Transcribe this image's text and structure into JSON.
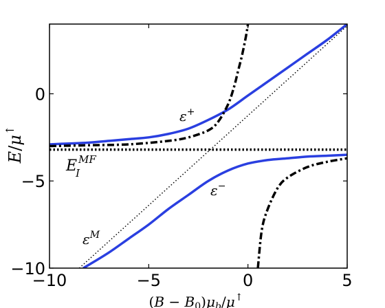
{
  "chart_data": {
    "type": "line",
    "title": "",
    "xlabel": "(B − B₀)μ_b/μ↑",
    "ylabel": "E/μ↑",
    "xlim": [
      -10,
      5
    ],
    "ylim": [
      -10,
      4
    ],
    "xticks": [
      -10,
      -5,
      0,
      5
    ],
    "yticks": [
      -10,
      -5,
      0
    ],
    "xtick_labels": [
      "−10",
      "−5",
      "0",
      "5"
    ],
    "ytick_labels": [
      "−10",
      "−5",
      "0"
    ],
    "grid": false,
    "series": [
      {
        "name": "ε⁺",
        "style": "solid",
        "color": "#2a3fe0",
        "x": [
          -10,
          -9,
          -8,
          -7,
          -6,
          -5,
          -4,
          -3,
          -2,
          -1,
          0,
          1,
          2,
          3,
          4,
          5
        ],
        "y": [
          -2.9,
          -2.85,
          -2.8,
          -2.7,
          -2.6,
          -2.5,
          -2.3,
          -2.0,
          -1.5,
          -0.9,
          -0.1,
          0.7,
          1.5,
          2.3,
          3.1,
          4.0
        ]
      },
      {
        "name": "ε⁻",
        "style": "solid",
        "color": "#2a3fe0",
        "x": [
          -8.3,
          -8,
          -7,
          -6,
          -5,
          -4,
          -3,
          -2,
          -1,
          0,
          1,
          2,
          3,
          4,
          5
        ],
        "y": [
          -10,
          -9.8,
          -9.1,
          -8.3,
          -7.5,
          -6.6,
          -5.8,
          -5.0,
          -4.4,
          -4.0,
          -3.8,
          -3.7,
          -3.6,
          -3.55,
          -3.5
        ]
      },
      {
        "name": "ε^M",
        "style": "dotted",
        "color": "#000000",
        "x": [
          -8.5,
          5
        ],
        "y": [
          -10,
          3.9
        ]
      },
      {
        "name": "E_I^MF",
        "style": "dotted-horizontal",
        "color": "#000000",
        "x": [
          -10,
          5
        ],
        "y": [
          -3.2,
          -3.2
        ]
      },
      {
        "name": "",
        "style": "dashdot",
        "color": "#000000",
        "x": [
          -10,
          -8,
          -6,
          -4,
          -3,
          -2,
          -1.5,
          -1,
          -0.7,
          -0.5,
          -0.3,
          -0.1,
          0
        ],
        "y": [
          -3.0,
          -2.95,
          -2.9,
          -2.7,
          -2.5,
          -2.1,
          -1.6,
          -0.6,
          0.4,
          1.3,
          2.2,
          3.3,
          4.0
        ]
      },
      {
        "name": "",
        "style": "dashdot",
        "color": "#000000",
        "x": [
          0.5,
          0.7,
          1.0,
          1.5,
          2,
          3,
          4,
          5
        ],
        "y": [
          -10,
          -7.8,
          -6.6,
          -5.4,
          -4.8,
          -4.2,
          -3.9,
          -3.7
        ]
      }
    ],
    "annotations": [
      {
        "text": "ε⁺",
        "x": -6.2,
        "y": -1.4
      },
      {
        "text": "E_I^MF",
        "x": -9.0,
        "y": -4.2
      },
      {
        "text": "ε⁻",
        "x": -3.0,
        "y": -5.5
      },
      {
        "text": "ε^M",
        "x": -8.0,
        "y": -8.7
      }
    ]
  }
}
